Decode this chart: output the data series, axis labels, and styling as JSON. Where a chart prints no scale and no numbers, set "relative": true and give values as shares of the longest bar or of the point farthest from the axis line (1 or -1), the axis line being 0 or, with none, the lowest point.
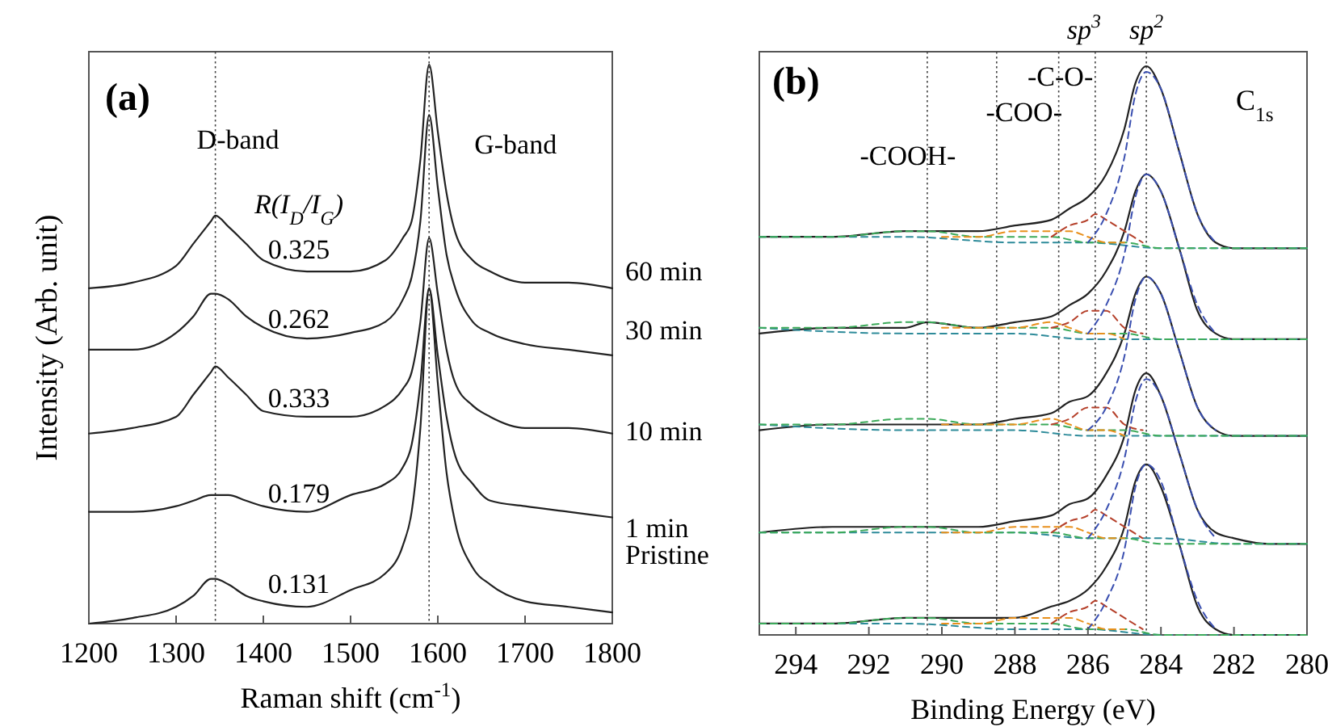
{
  "chart_data": [
    {
      "type": "line",
      "relative": true,
      "xlabel": "Raman shift (cm$^{-1}$)",
      "ylabel": "Intensity (Arb. unit)",
      "xlim": [
        1200,
        1800
      ],
      "xticks": [
        1200,
        1300,
        1400,
        1500,
        1600,
        1700,
        1800
      ],
      "tick_labels": "x",
      "x": [
        1200,
        1250,
        1300,
        1320,
        1340,
        1345,
        1360,
        1380,
        1400,
        1450,
        1500,
        1540,
        1560,
        1570,
        1580,
        1590,
        1600,
        1610,
        1620,
        1640,
        1660,
        1700,
        1750,
        1800
      ],
      "series": [
        {
          "name": "60 min",
          "color": "#222222",
          "values": [
            0.6,
            0.61,
            0.64,
            0.68,
            0.72,
            0.73,
            0.71,
            0.68,
            0.65,
            0.63,
            0.63,
            0.65,
            0.69,
            0.72,
            0.83,
            1.0,
            0.88,
            0.77,
            0.7,
            0.65,
            0.63,
            0.61,
            0.61,
            0.6
          ]
        },
        {
          "name": "30 min",
          "color": "#222222",
          "values": [
            0.49,
            0.49,
            0.52,
            0.55,
            0.59,
            0.59,
            0.58,
            0.55,
            0.53,
            0.51,
            0.52,
            0.54,
            0.58,
            0.62,
            0.72,
            0.91,
            0.78,
            0.66,
            0.6,
            0.54,
            0.52,
            0.5,
            0.49,
            0.48
          ]
        },
        {
          "name": "10 min",
          "color": "#222222",
          "values": [
            0.34,
            0.35,
            0.37,
            0.41,
            0.45,
            0.46,
            0.44,
            0.41,
            0.38,
            0.37,
            0.37,
            0.39,
            0.42,
            0.45,
            0.54,
            0.69,
            0.59,
            0.49,
            0.43,
            0.39,
            0.37,
            0.35,
            0.35,
            0.34
          ]
        },
        {
          "name": "1 min",
          "color": "#222222",
          "values": [
            0.2,
            0.2,
            0.21,
            0.22,
            0.23,
            0.23,
            0.23,
            0.22,
            0.21,
            0.2,
            0.23,
            0.25,
            0.28,
            0.32,
            0.43,
            0.6,
            0.48,
            0.37,
            0.3,
            0.25,
            0.22,
            0.21,
            0.2,
            0.19
          ]
        },
        {
          "name": "Pristine",
          "color": "#222222",
          "values": [
            0,
            0.01,
            0.03,
            0.05,
            0.08,
            0.08,
            0.07,
            0.05,
            0.04,
            0.03,
            0.06,
            0.09,
            0.14,
            0.2,
            0.35,
            0.6,
            0.43,
            0.27,
            0.18,
            0.1,
            0.07,
            0.04,
            0.03,
            0.02
          ]
        }
      ],
      "ref_lines": [
        {
          "axis": "x",
          "value": 1345,
          "label": "D-band",
          "line_style": "dotted"
        },
        {
          "axis": "x",
          "value": 1590,
          "label": "G-band",
          "line_style": "dotted"
        }
      ],
      "annotations": [
        "(a)",
        "R(I$_{D}$/I$_{G}$)",
        "0.325",
        "0.262",
        "0.333",
        "0.179",
        "0.131"
      ]
    },
    {
      "type": "line",
      "relative": true,
      "xlabel": "Binding Energy (eV)",
      "xlim": [
        295,
        280
      ],
      "xticks": [
        294,
        292,
        290,
        288,
        286,
        284,
        282,
        280
      ],
      "tick_labels": "x",
      "series": [
        {
          "color": "#222222",
          "x": [
            295,
            293,
            291,
            290.4,
            289,
            288,
            287,
            286.5,
            286,
            285.5,
            285,
            284.7,
            284.4,
            284,
            283.5,
            283,
            282.5,
            282,
            281,
            280
          ],
          "values": [
            0.7,
            0.7,
            0.71,
            0.71,
            0.71,
            0.72,
            0.73,
            0.75,
            0.77,
            0.81,
            0.89,
            0.97,
            1.0,
            0.96,
            0.85,
            0.74,
            0.69,
            0.68,
            0.68,
            0.68
          ]
        },
        {
          "color": "#222222",
          "x": [
            295,
            293,
            291,
            290.4,
            289,
            288,
            287,
            286.5,
            286,
            285.5,
            285,
            284.7,
            284.4,
            284,
            283.5,
            283,
            282.5,
            282,
            281,
            280
          ],
          "values": [
            0.53,
            0.54,
            0.54,
            0.55,
            0.54,
            0.55,
            0.56,
            0.58,
            0.6,
            0.64,
            0.71,
            0.78,
            0.81,
            0.78,
            0.68,
            0.57,
            0.53,
            0.52,
            0.52,
            0.52
          ]
        },
        {
          "color": "#222222",
          "x": [
            295,
            293,
            291,
            290.4,
            289,
            288,
            287,
            286.5,
            286,
            285.5,
            285,
            284.7,
            284.4,
            284,
            283.5,
            283,
            282.5,
            282,
            281,
            280
          ],
          "values": [
            0.36,
            0.37,
            0.37,
            0.37,
            0.37,
            0.38,
            0.39,
            0.41,
            0.42,
            0.46,
            0.53,
            0.6,
            0.63,
            0.6,
            0.5,
            0.4,
            0.36,
            0.35,
            0.35,
            0.35
          ]
        },
        {
          "color": "#222222",
          "x": [
            295,
            293,
            291,
            290.4,
            289,
            288,
            287,
            286.5,
            286,
            285.5,
            285,
            284.7,
            284.4,
            284,
            283.5,
            283,
            282.5,
            282,
            281,
            280
          ],
          "values": [
            0.18,
            0.19,
            0.19,
            0.19,
            0.19,
            0.2,
            0.21,
            0.23,
            0.24,
            0.28,
            0.35,
            0.43,
            0.46,
            0.42,
            0.32,
            0.22,
            0.18,
            0.17,
            0.16,
            0.16
          ]
        },
        {
          "color": "#222222",
          "x": [
            295,
            293,
            291,
            290.4,
            289,
            288,
            287,
            286.5,
            286,
            285.5,
            285,
            284.7,
            284.4,
            284,
            283.5,
            283,
            282.5,
            282,
            281,
            280
          ],
          "values": [
            0.02,
            0.02,
            0.03,
            0.03,
            0.03,
            0.03,
            0.05,
            0.06,
            0.08,
            0.12,
            0.19,
            0.27,
            0.3,
            0.26,
            0.16,
            0.05,
            0.01,
            0,
            0,
            0
          ]
        },
        {
          "color": "#2e8b9a",
          "line_style": "dashed",
          "x": [
            295,
            291,
            288,
            286,
            284,
            282,
            280
          ],
          "values": [
            0.7,
            0.7,
            0.69,
            0.69,
            0.68,
            0.68,
            0.68
          ]
        },
        {
          "color": "#2e8b9a",
          "line_style": "dashed",
          "x": [
            295,
            291,
            288,
            286,
            284,
            282,
            280
          ],
          "values": [
            0.54,
            0.53,
            0.53,
            0.52,
            0.52,
            0.52,
            0.52
          ]
        },
        {
          "color": "#2e8b9a",
          "line_style": "dashed",
          "x": [
            295,
            291,
            288,
            286,
            284,
            282,
            280
          ],
          "values": [
            0.37,
            0.36,
            0.36,
            0.35,
            0.35,
            0.35,
            0.35
          ]
        },
        {
          "color": "#2e8b9a",
          "line_style": "dashed",
          "x": [
            295,
            291,
            288,
            286,
            284,
            282,
            280
          ],
          "values": [
            0.18,
            0.18,
            0.18,
            0.17,
            0.17,
            0.16,
            0.16
          ]
        },
        {
          "color": "#2e8b9a",
          "line_style": "dashed",
          "x": [
            295,
            291,
            288,
            286,
            284,
            282,
            280
          ],
          "values": [
            0.02,
            0.02,
            0.01,
            0.01,
            0,
            0,
            0
          ]
        },
        {
          "color": "#3caa5a",
          "line_style": "dashed",
          "x": [
            295,
            293,
            291,
            290.4,
            289,
            288,
            287,
            286,
            285,
            284,
            283,
            282,
            281,
            280
          ],
          "values": [
            0.7,
            0.7,
            0.71,
            0.71,
            0.7,
            0.7,
            0.7,
            0.69,
            0.69,
            0.68,
            0.68,
            0.68,
            0.68,
            0.68
          ]
        },
        {
          "color": "#3caa5a",
          "line_style": "dashed",
          "x": [
            295,
            293,
            291,
            290.4,
            289,
            288,
            287,
            286,
            285,
            284,
            283,
            282,
            281,
            280
          ],
          "values": [
            0.54,
            0.54,
            0.55,
            0.55,
            0.54,
            0.54,
            0.54,
            0.53,
            0.53,
            0.52,
            0.52,
            0.52,
            0.52,
            0.52
          ]
        },
        {
          "color": "#3caa5a",
          "line_style": "dashed",
          "x": [
            295,
            293,
            291,
            290.4,
            289,
            288,
            287,
            286,
            285,
            284,
            283,
            282,
            281,
            280
          ],
          "values": [
            0.37,
            0.37,
            0.38,
            0.38,
            0.37,
            0.37,
            0.37,
            0.36,
            0.36,
            0.35,
            0.35,
            0.35,
            0.35,
            0.35
          ]
        },
        {
          "color": "#3caa5a",
          "line_style": "dashed",
          "x": [
            295,
            293,
            291,
            290.4,
            289,
            288,
            287,
            286,
            285,
            284,
            283,
            282,
            281,
            280
          ],
          "values": [
            0.18,
            0.18,
            0.19,
            0.19,
            0.18,
            0.18,
            0.18,
            0.17,
            0.17,
            0.16,
            0.16,
            0.16,
            0.16,
            0.16
          ]
        },
        {
          "color": "#3caa5a",
          "line_style": "dashed",
          "x": [
            295,
            293,
            291,
            290.4,
            289,
            288,
            287,
            286,
            285,
            284,
            283,
            282,
            281,
            280
          ],
          "values": [
            0.02,
            0.02,
            0.03,
            0.03,
            0.02,
            0.02,
            0.02,
            0.01,
            0.01,
            0,
            0,
            0,
            0,
            0
          ]
        },
        {
          "color": "#e8901c",
          "line_style": "dashed",
          "x": [
            290,
            289,
            288,
            287,
            286.5,
            286,
            285.5,
            285
          ],
          "values": [
            0.7,
            0.7,
            0.71,
            0.71,
            0.71,
            0.7,
            0.69,
            0.69
          ]
        },
        {
          "color": "#e8901c",
          "line_style": "dashed",
          "x": [
            290,
            289,
            288,
            287,
            286.5,
            286,
            285.5,
            285
          ],
          "values": [
            0.54,
            0.54,
            0.54,
            0.55,
            0.54,
            0.53,
            0.53,
            0.52
          ]
        },
        {
          "color": "#e8901c",
          "line_style": "dashed",
          "x": [
            290,
            289,
            288,
            287,
            286.5,
            286,
            285.5,
            285
          ],
          "values": [
            0.37,
            0.37,
            0.37,
            0.38,
            0.37,
            0.36,
            0.36,
            0.35
          ]
        },
        {
          "color": "#e8901c",
          "line_style": "dashed",
          "x": [
            290,
            289,
            288,
            287,
            286.5,
            286,
            285.5,
            285
          ],
          "values": [
            0.18,
            0.18,
            0.19,
            0.19,
            0.19,
            0.18,
            0.17,
            0.17
          ]
        },
        {
          "color": "#e8901c",
          "line_style": "dashed",
          "x": [
            290,
            289,
            288,
            287,
            286.5,
            286,
            285.5,
            285
          ],
          "values": [
            0.02,
            0.02,
            0.03,
            0.03,
            0.03,
            0.02,
            0.01,
            0.01
          ]
        },
        {
          "color": "#b5402a",
          "line_style": "dashed",
          "x": [
            287,
            286.5,
            286,
            285.8,
            285.5,
            285,
            284.5
          ],
          "values": [
            0.7,
            0.72,
            0.73,
            0.74,
            0.73,
            0.71,
            0.69
          ]
        },
        {
          "color": "#b5402a",
          "line_style": "dashed",
          "x": [
            287,
            286.5,
            286,
            285.8,
            285.5,
            285,
            284.5
          ],
          "values": [
            0.54,
            0.55,
            0.57,
            0.57,
            0.57,
            0.54,
            0.53
          ]
        },
        {
          "color": "#b5402a",
          "line_style": "dashed",
          "x": [
            287,
            286.5,
            286,
            285.8,
            285.5,
            285,
            284.5
          ],
          "values": [
            0.37,
            0.38,
            0.4,
            0.4,
            0.4,
            0.37,
            0.36
          ]
        },
        {
          "color": "#b5402a",
          "line_style": "dashed",
          "x": [
            287,
            286.5,
            286,
            285.8,
            285.5,
            285,
            284.5
          ],
          "values": [
            0.18,
            0.2,
            0.21,
            0.22,
            0.21,
            0.19,
            0.17
          ]
        },
        {
          "color": "#b5402a",
          "line_style": "dashed",
          "x": [
            287,
            286.5,
            286,
            285.8,
            285.5,
            285,
            284.5
          ],
          "values": [
            0.02,
            0.04,
            0.05,
            0.06,
            0.05,
            0.03,
            0.01
          ]
        },
        {
          "color": "#3a4fb0",
          "line_style": "dashed",
          "x": [
            286,
            285.5,
            285,
            284.7,
            284.4,
            284,
            283.5,
            283,
            282.5
          ],
          "values": [
            0.69,
            0.74,
            0.84,
            0.95,
            0.99,
            0.96,
            0.85,
            0.74,
            0.69
          ]
        },
        {
          "color": "#3a4fb0",
          "line_style": "dashed",
          "x": [
            286,
            285.5,
            285,
            284.7,
            284.4,
            284,
            283.5,
            283,
            282.5
          ],
          "values": [
            0.53,
            0.58,
            0.67,
            0.77,
            0.81,
            0.78,
            0.68,
            0.58,
            0.53
          ]
        },
        {
          "color": "#3a4fb0",
          "line_style": "dashed",
          "x": [
            286,
            285.5,
            285,
            284.7,
            284.4,
            284,
            283.5,
            283,
            282.5
          ],
          "values": [
            0.36,
            0.4,
            0.49,
            0.59,
            0.63,
            0.6,
            0.5,
            0.4,
            0.36
          ]
        },
        {
          "color": "#3a4fb0",
          "line_style": "dashed",
          "x": [
            286,
            285.5,
            285,
            284.7,
            284.4,
            284,
            283.5,
            283,
            282.5
          ],
          "values": [
            0.17,
            0.22,
            0.31,
            0.41,
            0.45,
            0.42,
            0.32,
            0.22,
            0.17
          ]
        },
        {
          "color": "#3a4fb0",
          "line_style": "dashed",
          "x": [
            286,
            285.5,
            285,
            284.7,
            284.4,
            284,
            283.5,
            283,
            282.5
          ],
          "values": [
            0.01,
            0.06,
            0.15,
            0.26,
            0.3,
            0.27,
            0.16,
            0.06,
            0.01
          ]
        }
      ],
      "ref_lines": [
        {
          "axis": "x",
          "value": 290.4,
          "label": "-COOH-",
          "line_style": "dotted"
        },
        {
          "axis": "x",
          "value": 288.5,
          "label": "-COO-",
          "line_style": "dotted"
        },
        {
          "axis": "x",
          "value": 286.8,
          "label": "-C-O-",
          "line_style": "dotted"
        },
        {
          "axis": "x",
          "value": 285.8,
          "label": "sp$^{3}$",
          "line_style": "dotted"
        },
        {
          "axis": "x",
          "value": 284.4,
          "label": "sp$^{2}$",
          "line_style": "dotted"
        }
      ],
      "annotations": [
        "(b)",
        "C$_{1s}$"
      ]
    }
  ]
}
